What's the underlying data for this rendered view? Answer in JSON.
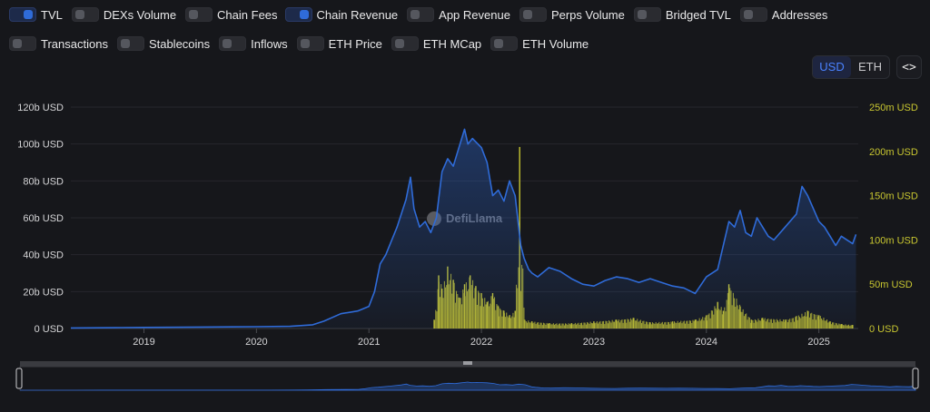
{
  "toggles": [
    {
      "label": "TVL",
      "on": true
    },
    {
      "label": "DEXs Volume",
      "on": false
    },
    {
      "label": "Chain Fees",
      "on": false
    },
    {
      "label": "Chain Revenue",
      "on": true
    },
    {
      "label": "App Revenue",
      "on": false
    },
    {
      "label": "Perps Volume",
      "on": false
    },
    {
      "label": "Bridged TVL",
      "on": false
    },
    {
      "label": "Addresses",
      "on": false
    },
    {
      "label": "Transactions",
      "on": false
    },
    {
      "label": "Stablecoins",
      "on": false
    },
    {
      "label": "Inflows",
      "on": false
    },
    {
      "label": "ETH Price",
      "on": false
    },
    {
      "label": "ETH MCap",
      "on": false
    },
    {
      "label": "ETH Volume",
      "on": false
    }
  ],
  "unit_switch": {
    "options": [
      "USD",
      "ETH"
    ],
    "selected": "USD"
  },
  "embed_button": {
    "label": "<>"
  },
  "watermark": "DefiLlama",
  "colors": {
    "tvl": "#2f6bd8",
    "revenue": "#c8c630",
    "background": "#16171b",
    "grid": "#2a2b30"
  },
  "chart_data": {
    "type": "area",
    "x_axis": {
      "ticks": [
        "2019",
        "2020",
        "2021",
        "2022",
        "2023",
        "2024",
        "2025"
      ],
      "start": 2018.35,
      "end": 2025.35
    },
    "y_left": {
      "ticks": [
        "0 USD",
        "20b USD",
        "40b USD",
        "60b USD",
        "80b USD",
        "100b USD",
        "120b USD"
      ],
      "min": 0,
      "max": 120
    },
    "y_right": {
      "ticks": [
        "0 USD",
        "50m USD",
        "100m USD",
        "150m USD",
        "200m USD",
        "250m USD"
      ],
      "min": 0,
      "max": 250
    },
    "series": [
      {
        "name": "TVL",
        "axis": "left",
        "type": "area",
        "x": [
          2018.35,
          2018.8,
          2019.0,
          2019.5,
          2020.0,
          2020.3,
          2020.5,
          2020.6,
          2020.75,
          2020.9,
          2021.0,
          2021.05,
          2021.1,
          2021.15,
          2021.25,
          2021.33,
          2021.37,
          2021.4,
          2021.45,
          2021.5,
          2021.55,
          2021.6,
          2021.65,
          2021.7,
          2021.75,
          2021.8,
          2021.85,
          2021.88,
          2021.92,
          2022.0,
          2022.05,
          2022.1,
          2022.15,
          2022.2,
          2022.25,
          2022.3,
          2022.35,
          2022.38,
          2022.42,
          2022.45,
          2022.5,
          2022.6,
          2022.7,
          2022.8,
          2022.9,
          2023.0,
          2023.1,
          2023.2,
          2023.3,
          2023.4,
          2023.5,
          2023.6,
          2023.7,
          2023.8,
          2023.9,
          2024.0,
          2024.1,
          2024.15,
          2024.2,
          2024.25,
          2024.3,
          2024.35,
          2024.4,
          2024.45,
          2024.5,
          2024.55,
          2024.6,
          2024.7,
          2024.8,
          2024.85,
          2024.9,
          2024.95,
          2025.0,
          2025.05,
          2025.1,
          2025.15,
          2025.2,
          2025.25,
          2025.3,
          2025.33
        ],
        "values": [
          0.3,
          0.5,
          0.6,
          0.8,
          1.0,
          1.2,
          2.0,
          4.0,
          8.0,
          9.5,
          12.0,
          20.0,
          35.0,
          40.0,
          55.0,
          70.0,
          82.0,
          65.0,
          55.0,
          58.0,
          52.0,
          60.0,
          85.0,
          92.0,
          88.0,
          98.0,
          108.0,
          100.0,
          103.0,
          98.0,
          90.0,
          72.0,
          75.0,
          69.0,
          80.0,
          72.0,
          45.0,
          38.0,
          32.0,
          30.0,
          28.0,
          33.0,
          31.0,
          27.0,
          24.0,
          23.0,
          26.0,
          28.0,
          27.0,
          25.0,
          27.0,
          25.0,
          23.0,
          22.0,
          19.0,
          28.0,
          32.0,
          45.0,
          58.0,
          55.0,
          64.0,
          52.0,
          50.0,
          60.0,
          55.0,
          50.0,
          48.0,
          55.0,
          62.0,
          77.0,
          72.0,
          65.0,
          58.0,
          55.0,
          50.0,
          45.0,
          50.0,
          48.0,
          46.0,
          51.0
        ]
      },
      {
        "name": "Chain Revenue",
        "axis": "right",
        "type": "bar",
        "x": [
          2021.58,
          2021.62,
          2021.65,
          2021.7,
          2021.75,
          2021.8,
          2021.85,
          2021.9,
          2021.95,
          2022.0,
          2022.05,
          2022.1,
          2022.15,
          2022.2,
          2022.25,
          2022.3,
          2022.34,
          2022.38,
          2022.45,
          2022.6,
          2022.8,
          2023.0,
          2023.2,
          2023.35,
          2023.5,
          2023.7,
          2023.9,
          2024.0,
          2024.1,
          2024.15,
          2024.2,
          2024.3,
          2024.4,
          2024.5,
          2024.7,
          2024.8,
          2024.9,
          2025.0,
          2025.1,
          2025.2,
          2025.3
        ],
        "values": [
          10,
          60,
          45,
          70,
          55,
          35,
          50,
          60,
          48,
          40,
          30,
          40,
          25,
          20,
          15,
          20,
          205,
          10,
          8,
          6,
          6,
          8,
          10,
          12,
          7,
          8,
          10,
          15,
          30,
          20,
          50,
          25,
          10,
          12,
          10,
          14,
          20,
          15,
          8,
          5,
          4
        ]
      }
    ]
  }
}
